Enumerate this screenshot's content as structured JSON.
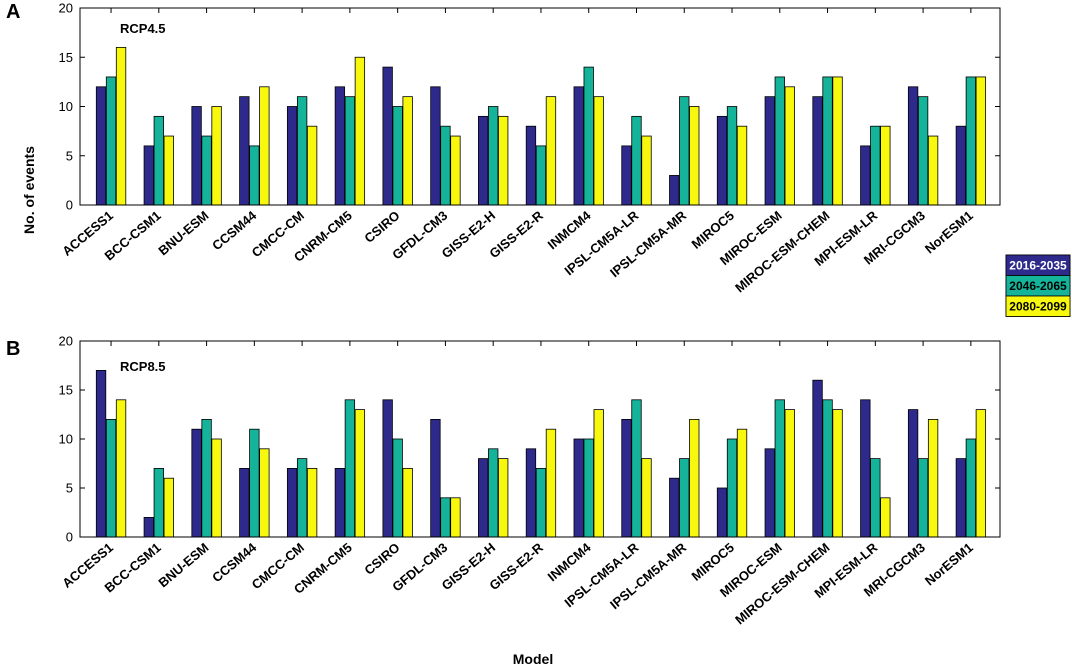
{
  "chart_data": [
    {
      "type": "bar",
      "panel_label": "A",
      "scenario": "RCP4.5",
      "categories": [
        "ACCESS1",
        "BCC-CSM1",
        "BNU-ESM",
        "CCSM44",
        "CMCC-CM",
        "CNRM-CM5",
        "CSIRO",
        "GFDL-CM3",
        "GISS-E2-H",
        "GISS-E2-R",
        "INMCM4",
        "IPSL-CM5A-LR",
        "IPSL-CM5A-MR",
        "MIROC5",
        "MIROC-ESM",
        "MIROC-ESM-CHEM",
        "MPI-ESM-LR",
        "MRI-CGCM3",
        "NorESM1"
      ],
      "series": [
        {
          "name": "2016-2035",
          "values": [
            12,
            6,
            10,
            11,
            10,
            12,
            14,
            12,
            9,
            8,
            12,
            6,
            3,
            9,
            11,
            11,
            6,
            12,
            8
          ]
        },
        {
          "name": "2046-2065",
          "values": [
            13,
            9,
            7,
            6,
            11,
            11,
            10,
            8,
            10,
            6,
            14,
            9,
            11,
            10,
            13,
            13,
            8,
            11,
            13
          ]
        },
        {
          "name": "2080-2099",
          "values": [
            16,
            7,
            10,
            12,
            8,
            15,
            11,
            7,
            9,
            11,
            11,
            7,
            10,
            8,
            12,
            13,
            8,
            7,
            13
          ]
        }
      ],
      "ylim": [
        0,
        20
      ],
      "yticks": [
        0,
        5,
        10,
        15,
        20
      ]
    },
    {
      "type": "bar",
      "panel_label": "B",
      "scenario": "RCP8.5",
      "categories": [
        "ACCESS1",
        "BCC-CSM1",
        "BNU-ESM",
        "CCSM44",
        "CMCC-CM",
        "CNRM-CM5",
        "CSIRO",
        "GFDL-CM3",
        "GISS-E2-H",
        "GISS-E2-R",
        "INMCM4",
        "IPSL-CM5A-LR",
        "IPSL-CM5A-MR",
        "MIROC5",
        "MIROC-ESM",
        "MIROC-ESM-CHEM",
        "MPI-ESM-LR",
        "MRI-CGCM3",
        "NorESM1"
      ],
      "series": [
        {
          "name": "2016-2035",
          "values": [
            17,
            2,
            11,
            7,
            7,
            7,
            14,
            12,
            8,
            9,
            10,
            12,
            6,
            5,
            9,
            16,
            14,
            13,
            8
          ]
        },
        {
          "name": "2046-2065",
          "values": [
            12,
            7,
            12,
            11,
            8,
            14,
            10,
            4,
            9,
            7,
            10,
            14,
            8,
            10,
            14,
            14,
            8,
            8,
            10
          ]
        },
        {
          "name": "2080-2099",
          "values": [
            14,
            6,
            10,
            9,
            7,
            13,
            7,
            4,
            8,
            11,
            13,
            8,
            12,
            11,
            13,
            13,
            4,
            12,
            13
          ]
        }
      ],
      "ylim": [
        0,
        20
      ],
      "yticks": [
        0,
        5,
        10,
        15,
        20
      ]
    }
  ],
  "ylabel": "No. of events",
  "xlabel": "Model",
  "legend": [
    {
      "label": "2016-2035",
      "color": "#2e2a8c"
    },
    {
      "label": "2046-2065",
      "color": "#15b39a"
    },
    {
      "label": "2080-2099",
      "color": "#f8f80f"
    }
  ]
}
